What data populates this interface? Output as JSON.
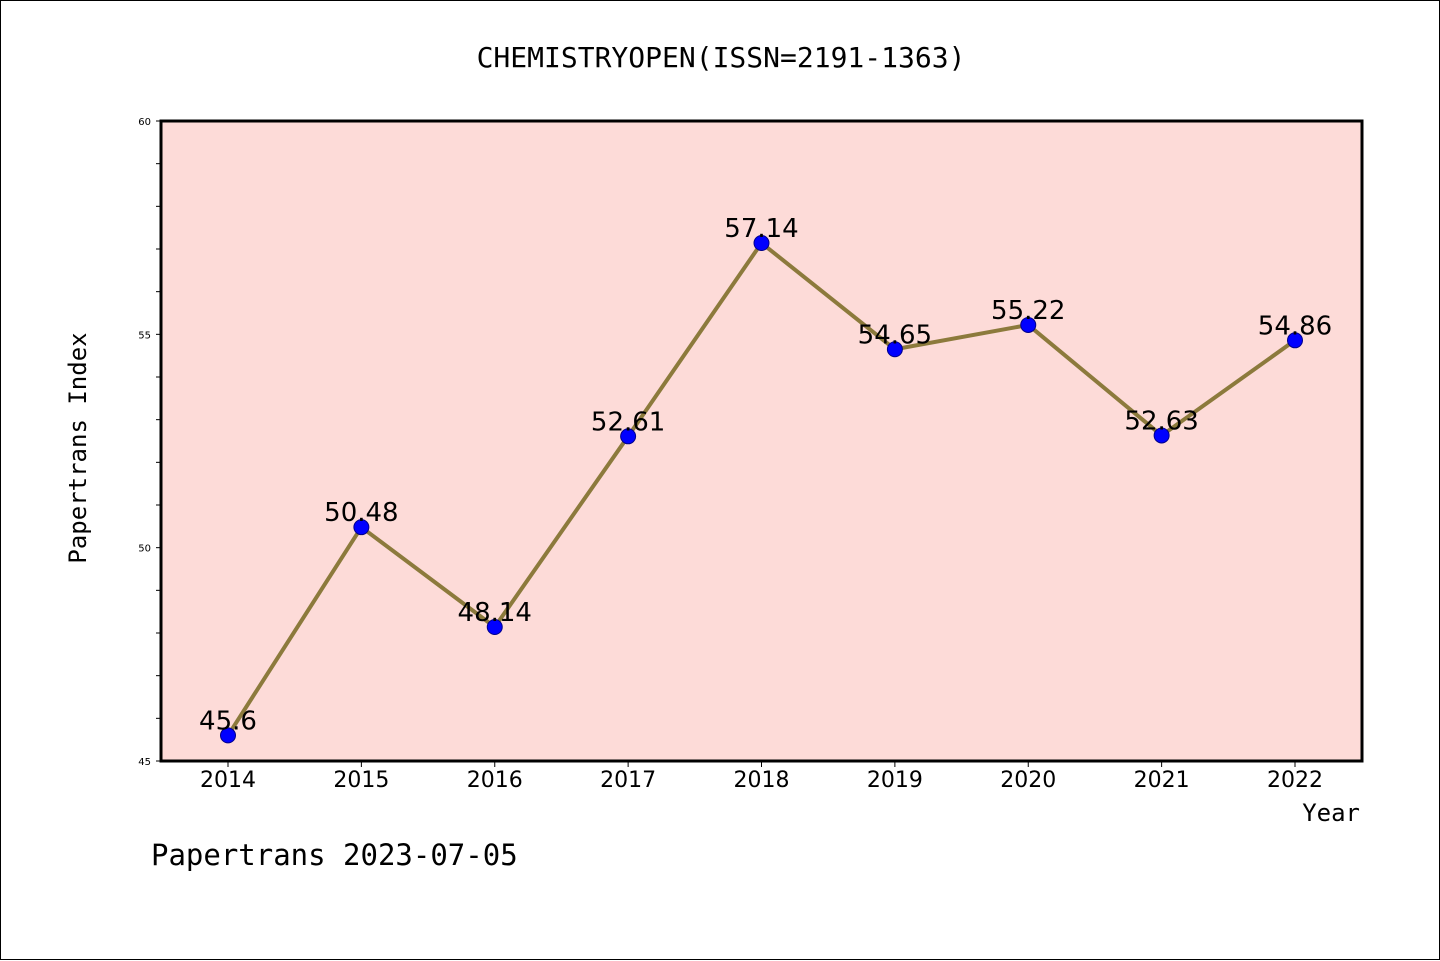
{
  "chart_data": {
    "type": "line",
    "title": "CHEMISTRYOPEN(ISSN=2191-1363)",
    "xlabel": "Year",
    "ylabel": "Papertrans Index",
    "categories": [
      "2014",
      "2015",
      "2016",
      "2017",
      "2018",
      "2019",
      "2020",
      "2021",
      "2022"
    ],
    "values": [
      45.6,
      50.48,
      48.14,
      52.61,
      57.14,
      54.65,
      55.22,
      52.63,
      54.86
    ],
    "value_labels": [
      "45.6",
      "50.48",
      "48.14",
      "52.61",
      "57.14",
      "54.65",
      "55.22",
      "52.63",
      "54.86"
    ],
    "ylim": [
      45,
      60
    ],
    "yticks": [
      45,
      50,
      55,
      60
    ],
    "grid": false,
    "colors": {
      "plot_background": "#fddbd8",
      "line": "#8c7a3c",
      "marker": "#0000ff",
      "marker_edge": "#00008b"
    }
  },
  "footer": "Papertrans 2023-07-05"
}
